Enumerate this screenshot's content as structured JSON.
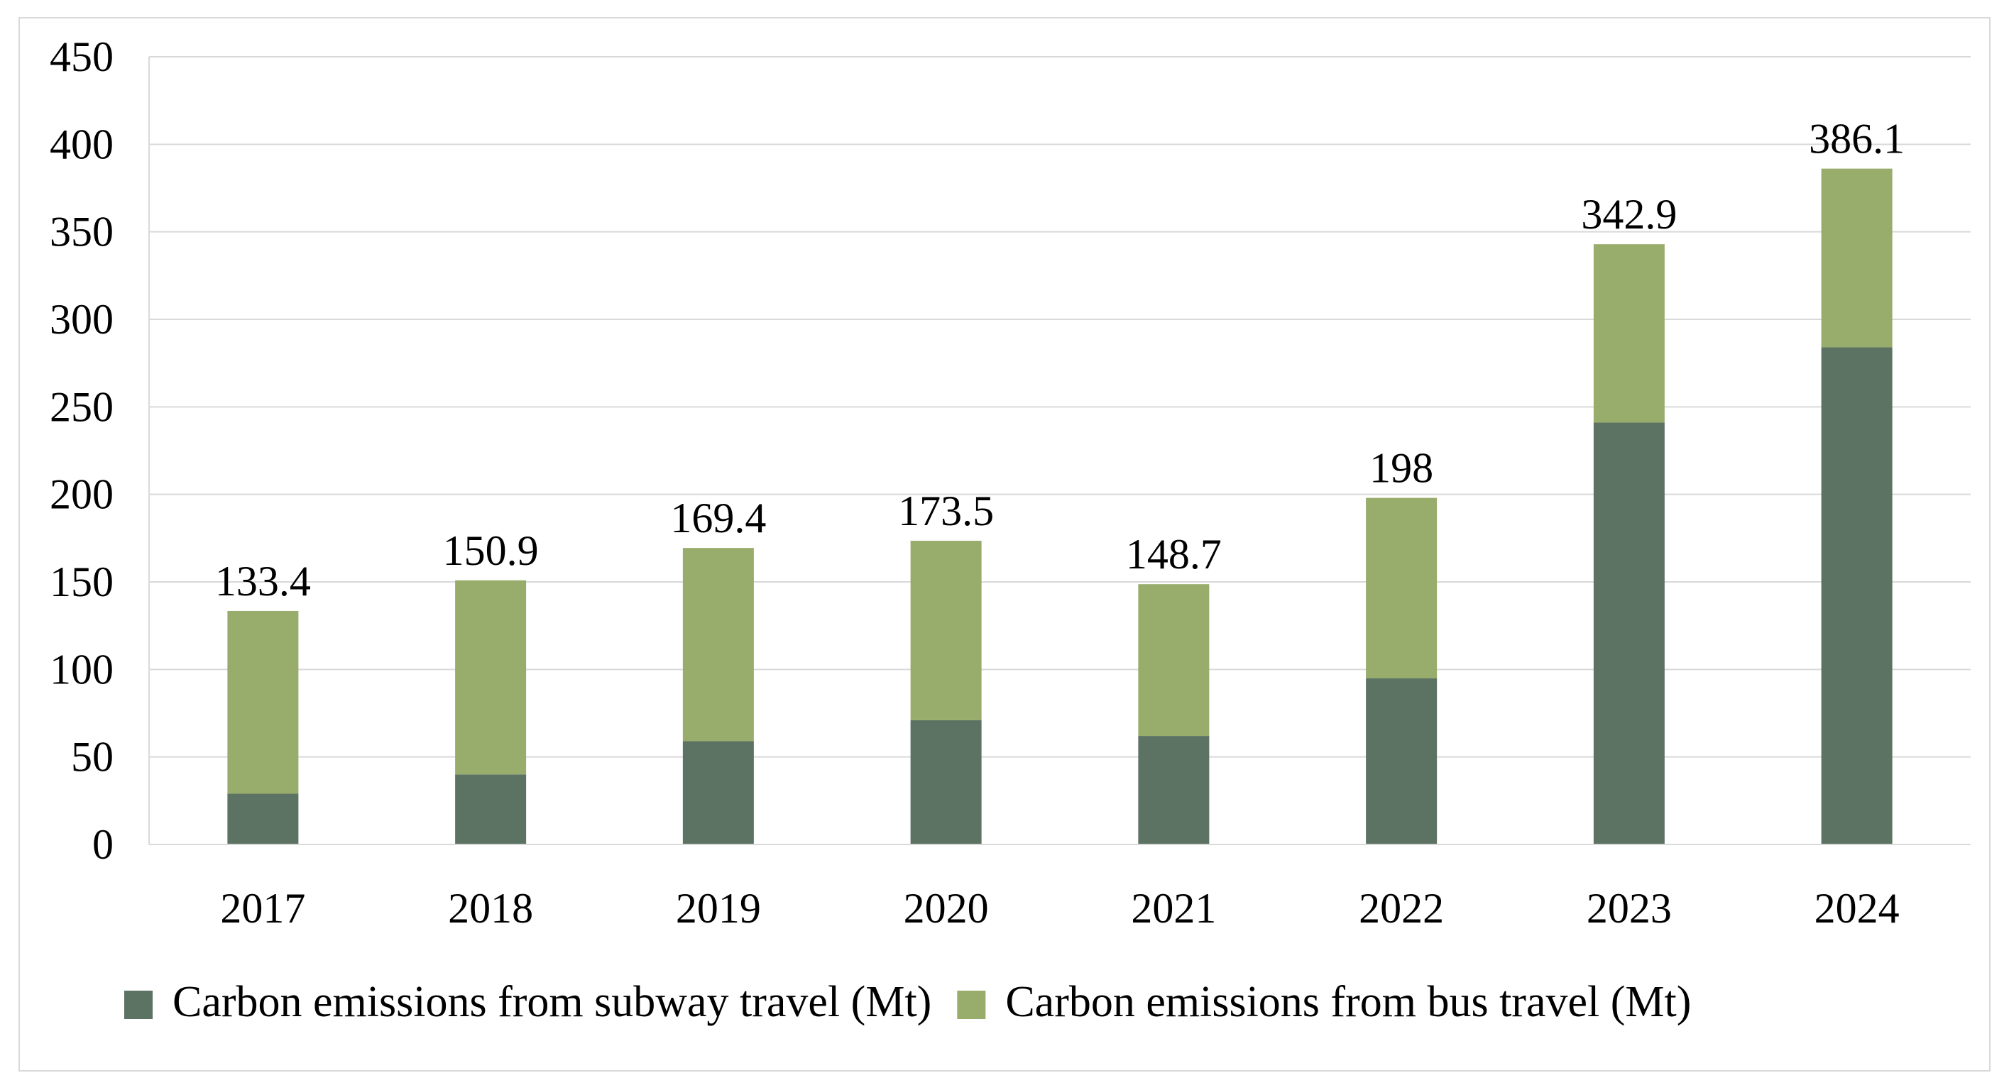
{
  "chart_data": {
    "type": "bar",
    "stacked": true,
    "title": "",
    "xlabel": "",
    "ylabel": "",
    "ylim": [
      0,
      450
    ],
    "y_ticks": [
      0,
      50,
      100,
      150,
      200,
      250,
      300,
      350,
      400,
      450
    ],
    "grid": true,
    "legend_position": "bottom",
    "categories": [
      "2017",
      "2018",
      "2019",
      "2020",
      "2021",
      "2022",
      "2023",
      "2024"
    ],
    "series": [
      {
        "name": "Carbon emissions from subway travel (Mt)",
        "color": "#5c7263",
        "values": [
          29,
          40,
          59,
          71,
          62,
          95,
          241,
          284
        ]
      },
      {
        "name": "Carbon emissions from bus travel (Mt)",
        "color": "#98ac6b",
        "values": [
          104.4,
          110.9,
          110.4,
          102.5,
          86.7,
          103,
          101.9,
          102.1
        ]
      }
    ],
    "totals": [
      "133.4",
      "150.9",
      "169.4",
      "173.5",
      "148.7",
      "198",
      "342.9",
      "386.1"
    ]
  }
}
